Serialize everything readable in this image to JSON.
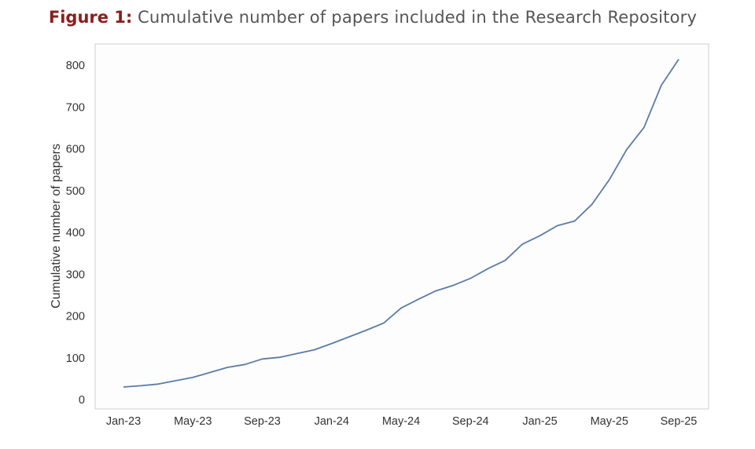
{
  "title": {
    "figure_label": "Figure 1:",
    "text": "Cumulative number of papers included in the Research Repository"
  },
  "chart_data": {
    "type": "line",
    "ylabel": "Cumulative number of papers",
    "xlabel": "",
    "ylim": [
      -10,
      830
    ],
    "yticks": [
      0,
      100,
      200,
      300,
      400,
      500,
      600,
      700,
      800
    ],
    "grid": false,
    "line_color": "#5b7ba8",
    "x_tick_labels": [
      "Jan-23",
      "May-23",
      "Sep-23",
      "Jan-24",
      "May-24",
      "Sep-24",
      "Jan-25",
      "May-25",
      "Sep-25"
    ],
    "series": [
      {
        "x": [
          "Jan-23",
          "Feb-23",
          "Mar-23",
          "Apr-23",
          "May-23",
          "Jun-23",
          "Jul-23",
          "Aug-23",
          "Sep-23",
          "Oct-23",
          "Nov-23",
          "Dec-23",
          "Jan-24",
          "Feb-24",
          "Mar-24",
          "Apr-24",
          "May-24",
          "Jun-24",
          "Jul-24",
          "Aug-24",
          "Sep-24",
          "Oct-24",
          "Nov-24",
          "Dec-24",
          "Jan-25",
          "Feb-25",
          "Mar-25",
          "Apr-25",
          "May-25",
          "Jun-25",
          "Jul-25",
          "Aug-25",
          "Sep-25"
        ],
        "values": [
          30,
          33,
          37,
          45,
          53,
          65,
          77,
          84,
          97,
          101,
          110,
          119,
          134,
          150,
          166,
          183,
          219,
          240,
          260,
          273,
          290,
          313,
          333,
          372,
          392,
          416,
          427,
          467,
          526,
          598,
          651,
          752,
          814
        ]
      }
    ]
  }
}
